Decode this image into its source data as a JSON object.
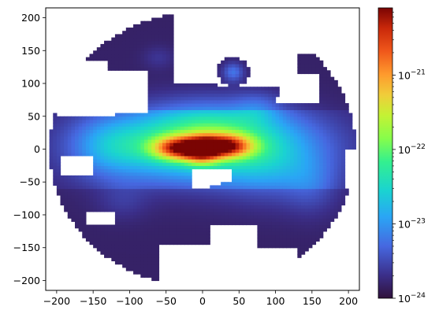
{
  "chart_data": {
    "type": "heatmap",
    "title": "",
    "xlabel": "",
    "ylabel": "",
    "xlim": [
      -215,
      215
    ],
    "ylim": [
      -215,
      215
    ],
    "xticks": [
      -200,
      -150,
      -100,
      -50,
      0,
      50,
      100,
      150,
      200
    ],
    "yticks": [
      -200,
      -150,
      -100,
      -50,
      0,
      50,
      100,
      150,
      200
    ],
    "grid": false,
    "colormap": "turbo",
    "color_scale": "log",
    "colorbar": {
      "location": "right",
      "vmin": 1e-24,
      "vmax": 8e-21,
      "ticks": [
        {
          "value": 1e-24,
          "base": "10",
          "exp": "−24"
        },
        {
          "value": 1e-23,
          "base": "10",
          "exp": "−23"
        },
        {
          "value": 1e-22,
          "base": "10",
          "exp": "−22"
        },
        {
          "value": 1e-21,
          "base": "10",
          "exp": "−21"
        }
      ]
    },
    "masked_color": "#ffffff",
    "data_region": {
      "shape": "disc",
      "radius": 210,
      "missing_regions": [
        {
          "name": "upper-left gap",
          "x_range": [
            -195,
            -80
          ],
          "y_range": [
            50,
            135
          ]
        },
        {
          "name": "top gap",
          "x_range": [
            -40,
            140
          ],
          "y_range": [
            95,
            215
          ]
        },
        {
          "name": "central hole",
          "x_range": [
            -15,
            45
          ],
          "y_range": [
            -60,
            -25
          ]
        }
      ]
    },
    "hotspots": [
      {
        "x": -30,
        "y": 2,
        "relative_intensity": "highest"
      },
      {
        "x": 30,
        "y": 5,
        "relative_intensity": "highest"
      },
      {
        "x": 0,
        "y": 0,
        "relative_intensity": "high"
      },
      {
        "x": 42,
        "y": 118,
        "relative_intensity": "medium"
      },
      {
        "x": -60,
        "y": 140,
        "relative_intensity": "low"
      }
    ]
  }
}
